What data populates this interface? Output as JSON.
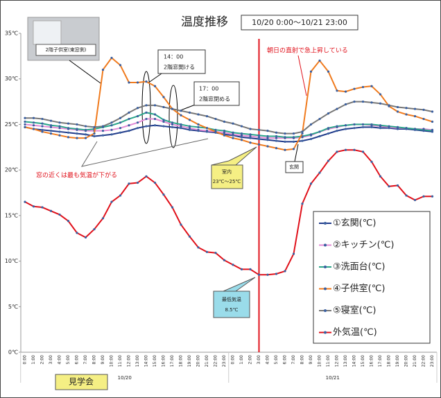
{
  "chart_data": {
    "type": "line",
    "title": "温度推移",
    "subtitle": "10/20 0:00～10/21 23:00",
    "categories": [
      "0:00",
      "1:00",
      "2:00",
      "3:00",
      "4:00",
      "5:00",
      "6:00",
      "7:00",
      "8:00",
      "9:00",
      "10:00",
      "11:00",
      "12:00",
      "13:00",
      "14:00",
      "15:00",
      "16:00",
      "17:00",
      "18:00",
      "19:00",
      "20:00",
      "21:00",
      "22:00",
      "23:00",
      "0:00",
      "1:00",
      "2:00",
      "3:00",
      "4:00",
      "5:00",
      "6:00",
      "7:00",
      "8:00",
      "9:00",
      "10:00",
      "11:00",
      "12:00",
      "13:00",
      "14:00",
      "15:00",
      "16:00",
      "17:00",
      "18:00",
      "19:00",
      "20:00",
      "21:00",
      "22:00",
      "23:00"
    ],
    "dates": [
      "10/20",
      "10/21"
    ],
    "ylim": [
      0,
      35
    ],
    "yticks": [
      {
        "value": 0,
        "label": "0℃"
      },
      {
        "value": 5,
        "label": "5℃"
      },
      {
        "value": 10,
        "label": "10℃"
      },
      {
        "value": 15,
        "label": "15℃"
      },
      {
        "value": 20,
        "label": "20℃"
      },
      {
        "value": 25,
        "label": "25℃"
      },
      {
        "value": 30,
        "label": "30℃"
      },
      {
        "value": 35,
        "label": "35℃"
      }
    ],
    "grid": false,
    "series": [
      {
        "name": "①玄関(℃)",
        "color": "#1f3a8a",
        "values": [
          24.7,
          24.5,
          24.4,
          24.3,
          24.2,
          24.1,
          24,
          23.9,
          23.7,
          23.8,
          23.9,
          24.1,
          24.3,
          24.6,
          24.8,
          24.9,
          24.8,
          24.7,
          24.6,
          24.4,
          24.3,
          24.2,
          24.1,
          23.9,
          23.8,
          23.6,
          23.5,
          23.4,
          23.3,
          23.2,
          23.1,
          23.1,
          23.2,
          23.4,
          23.7,
          24,
          24.3,
          24.5,
          24.6,
          24.7,
          24.7,
          24.6,
          24.6,
          24.5,
          24.5,
          24.4,
          24.3,
          24.2
        ]
      },
      {
        "name": "②キッチン(℃)",
        "color": "#e28bd6",
        "values": [
          25,
          24.9,
          24.8,
          24.7,
          24.6,
          24.5,
          24.4,
          24.3,
          24.3,
          24.3,
          24.4,
          24.6,
          24.9,
          25.2,
          25.6,
          25.6,
          25.3,
          25,
          24.8,
          24.6,
          24.4,
          24.3,
          24.2,
          24.1,
          23.9,
          23.8,
          23.7,
          23.6,
          23.5,
          23.5,
          23.5,
          23.5,
          23.6,
          23.8,
          24.2,
          24.5,
          24.7,
          24.9,
          25,
          25,
          24.9,
          24.8,
          24.7,
          24.6,
          24.6,
          24.5,
          24.5,
          24.4
        ]
      },
      {
        "name": "③洗面台(℃)",
        "color": "#2aa58a",
        "values": [
          25.3,
          25.2,
          25.1,
          24.9,
          24.8,
          24.6,
          24.5,
          24.4,
          24.5,
          24.7,
          24.9,
          25.2,
          25.6,
          25.9,
          26.3,
          26.1,
          25.5,
          25.2,
          25,
          24.8,
          24.7,
          24.6,
          24.4,
          24.3,
          24.1,
          24,
          23.9,
          23.8,
          23.7,
          23.7,
          23.6,
          23.6,
          23.7,
          23.9,
          24.2,
          24.6,
          24.8,
          24.9,
          25,
          25,
          25,
          24.9,
          24.8,
          24.7,
          24.6,
          24.5,
          24.4,
          24.3
        ]
      },
      {
        "name": "④子供室(℃)",
        "color": "#f07b1e",
        "values": [
          24.7,
          24.5,
          24.2,
          24,
          23.8,
          23.6,
          23.5,
          23.5,
          24,
          31,
          32.3,
          31.5,
          29.6,
          29.6,
          29.7,
          29.2,
          28,
          26.7,
          26,
          25.5,
          25,
          24.6,
          24.2,
          23.8,
          23.5,
          23.3,
          23,
          22.8,
          22.6,
          22.4,
          22.2,
          22.3,
          24,
          30.8,
          32,
          30.8,
          28.7,
          28.6,
          28.9,
          29.1,
          29.2,
          28.3,
          27,
          26.4,
          26.1,
          25.9,
          25.6,
          25.3
        ]
      },
      {
        "name": "⑤寝室(℃)",
        "color": "#767676",
        "values": [
          25.7,
          25.7,
          25.6,
          25.4,
          25.2,
          25.1,
          25,
          24.8,
          24.7,
          24.8,
          25.2,
          25.7,
          26.3,
          26.8,
          27.1,
          27.1,
          26.9,
          26.7,
          26.5,
          26.3,
          26.1,
          25.9,
          25.6,
          25.3,
          25.1,
          24.8,
          24.5,
          24.4,
          24.3,
          24.1,
          24,
          24,
          24.2,
          25,
          25.6,
          26.2,
          26.7,
          27.2,
          27.5,
          27.5,
          27.4,
          27.3,
          27.1,
          26.9,
          26.8,
          26.7,
          26.6,
          26.4
        ]
      },
      {
        "name": "外気温(℃)",
        "color": "#e0101a",
        "values": [
          16.5,
          16,
          15.9,
          15.5,
          15.1,
          14.4,
          13.1,
          12.6,
          13.5,
          14.7,
          16.5,
          17.2,
          18.5,
          18.6,
          19.3,
          18.6,
          17.3,
          15.9,
          14,
          12.7,
          11.5,
          11,
          10.9,
          10.1,
          9.6,
          9.1,
          9.1,
          8.5,
          8.5,
          8.6,
          8.9,
          10.8,
          16.3,
          18.5,
          19.7,
          21,
          22,
          22.2,
          22.2,
          22,
          20.9,
          19.3,
          18.2,
          18.3,
          17.2,
          16.7,
          17.1,
          17.1
        ]
      }
    ],
    "annotations": {
      "photo_caption": "2階子供室(東窓側)",
      "window_open": [
        "14：00",
        "2階窓開ける"
      ],
      "window_close": [
        "17：00",
        "2階窓閉める"
      ],
      "near_window": "窓の近くは最も気温が下がる",
      "morning_sun": "朝日の直射で急上昇している",
      "indoor": [
        "室内",
        "23℃～25℃"
      ],
      "entrance": "玄関",
      "lowest": [
        "最低気温",
        "8.5℃"
      ],
      "open_house": "見学会"
    }
  }
}
